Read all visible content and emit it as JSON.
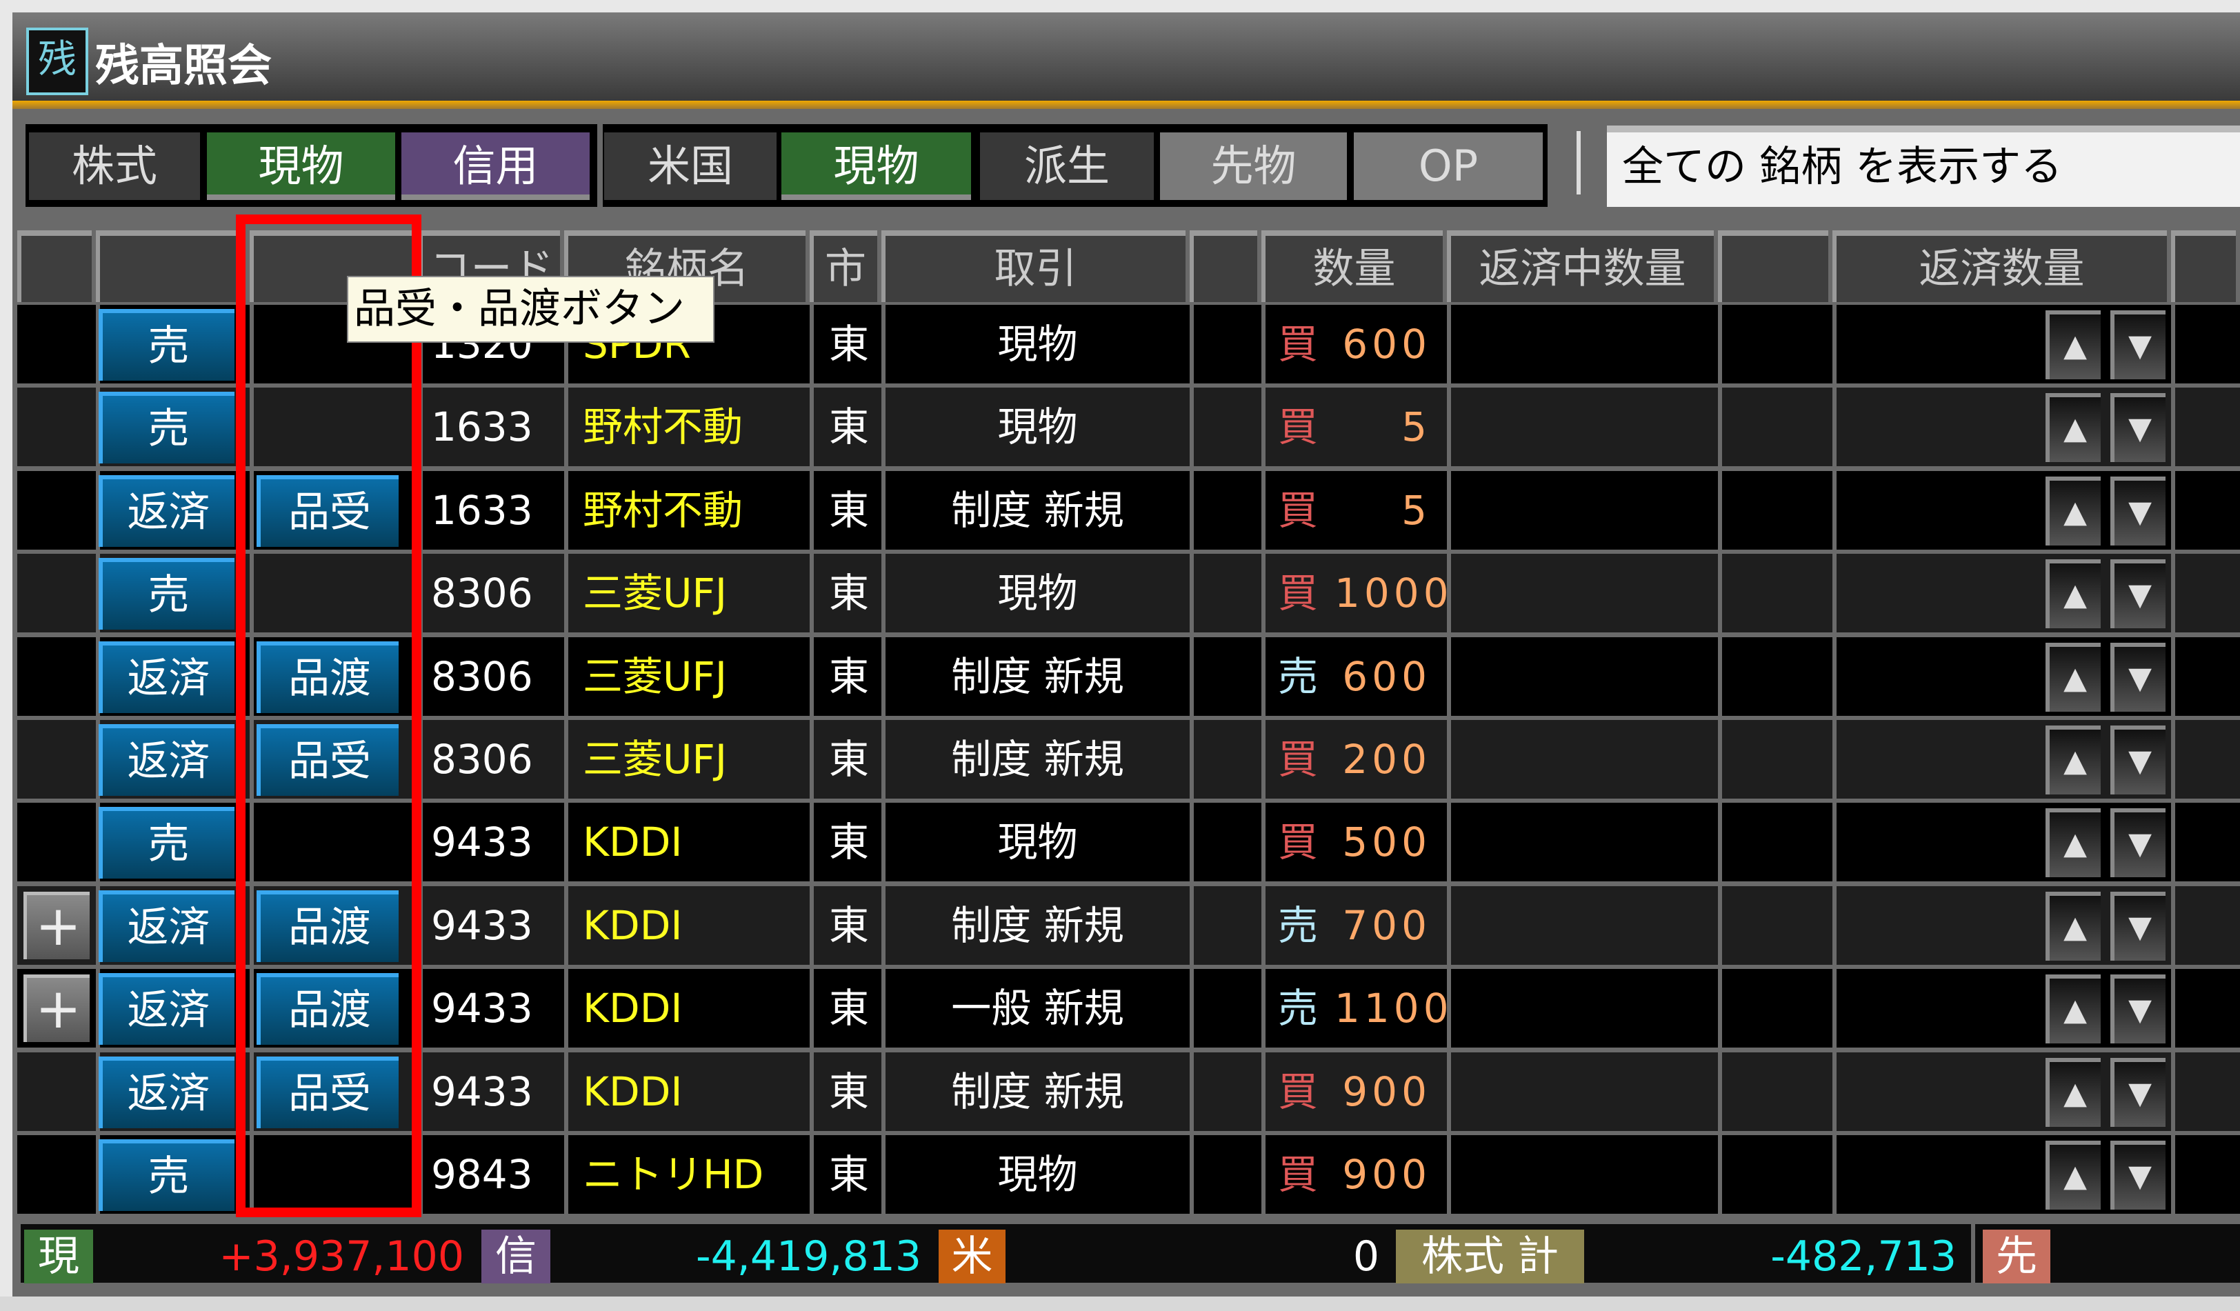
{
  "window": {
    "title": "残高照会",
    "icon_label": "残"
  },
  "tabs": {
    "stock_label": "株式",
    "stock_cash": "現物",
    "stock_margin": "信用",
    "us_label": "米国",
    "us_cash": "現物",
    "deriv_label": "派生",
    "deriv_futures": "先物",
    "deriv_op": "OP"
  },
  "filter": {
    "value": "全ての 銘柄 を表示する"
  },
  "table": {
    "headers": [
      "",
      "",
      "",
      "コード",
      "銘柄名",
      "市",
      "取引",
      "",
      "数量",
      "返済中数量",
      "",
      "返済数量",
      ""
    ],
    "rows": [
      {
        "plus": false,
        "action": "売",
        "delivery": "",
        "code": "1320",
        "name": "SPDR",
        "market": "東",
        "trade": "現物",
        "side": "買",
        "qty": "600"
      },
      {
        "plus": false,
        "action": "売",
        "delivery": "",
        "code": "1633",
        "name": "野村不動",
        "market": "東",
        "trade": "現物",
        "side": "買",
        "qty": "5"
      },
      {
        "plus": false,
        "action": "返済",
        "delivery": "品受",
        "code": "1633",
        "name": "野村不動",
        "market": "東",
        "trade": "制度 新規",
        "side": "買",
        "qty": "5"
      },
      {
        "plus": false,
        "action": "売",
        "delivery": "",
        "code": "8306",
        "name": "三菱UFJ",
        "market": "東",
        "trade": "現物",
        "side": "買",
        "qty": "1000"
      },
      {
        "plus": false,
        "action": "返済",
        "delivery": "品渡",
        "code": "8306",
        "name": "三菱UFJ",
        "market": "東",
        "trade": "制度 新規",
        "side": "売",
        "qty": "600"
      },
      {
        "plus": false,
        "action": "返済",
        "delivery": "品受",
        "code": "8306",
        "name": "三菱UFJ",
        "market": "東",
        "trade": "制度 新規",
        "side": "買",
        "qty": "200"
      },
      {
        "plus": false,
        "action": "売",
        "delivery": "",
        "code": "9433",
        "name": "KDDI",
        "market": "東",
        "trade": "現物",
        "side": "買",
        "qty": "500"
      },
      {
        "plus": true,
        "action": "返済",
        "delivery": "品渡",
        "code": "9433",
        "name": "KDDI",
        "market": "東",
        "trade": "制度 新規",
        "side": "売",
        "qty": "700"
      },
      {
        "plus": true,
        "action": "返済",
        "delivery": "品渡",
        "code": "9433",
        "name": "KDDI",
        "market": "東",
        "trade": "一般 新規",
        "side": "売",
        "qty": "1100"
      },
      {
        "plus": false,
        "action": "返済",
        "delivery": "品受",
        "code": "9433",
        "name": "KDDI",
        "market": "東",
        "trade": "制度 新規",
        "side": "買",
        "qty": "900"
      },
      {
        "plus": false,
        "action": "売",
        "delivery": "",
        "code": "9843",
        "name": "ニトリHD",
        "market": "東",
        "trade": "現物",
        "side": "買",
        "qty": "900"
      }
    ],
    "plus_label": "+",
    "up_label": "▲",
    "down_label": "▼"
  },
  "tooltip": "品受・品渡ボタン",
  "footer": {
    "cash_badge": "現",
    "cash_value": "+3,937,100",
    "margin_badge": "信",
    "margin_value": "-4,419,813",
    "us_badge": "米",
    "us_value": "0",
    "total_badge": "株式 計",
    "total_value": "-482,713",
    "futures_badge": "先"
  },
  "colors": {
    "buy": "#e05858",
    "sell": "#b8e8f8",
    "qty": "#ffa868",
    "name": "#ffff20",
    "positive": "#ff2020",
    "negative": "#20f0f0",
    "highlight": "#ff0000"
  }
}
